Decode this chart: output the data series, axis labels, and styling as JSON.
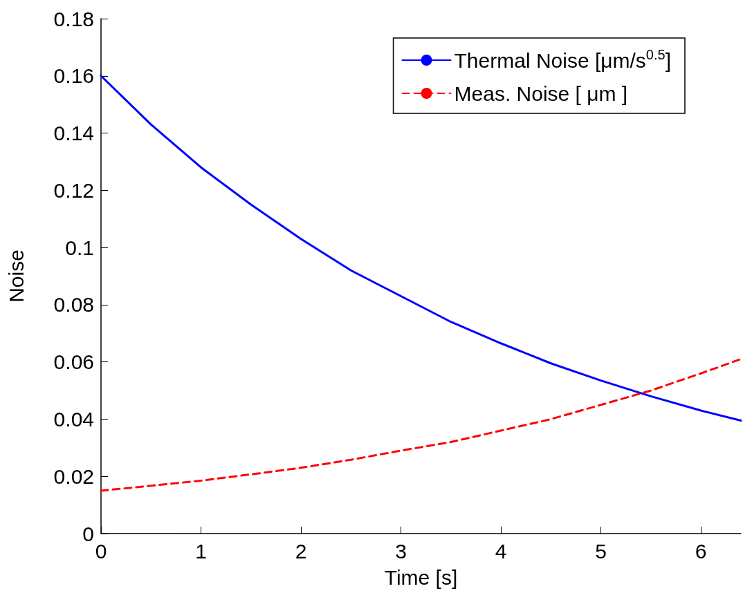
{
  "chart_data": {
    "type": "line",
    "xlabel": "Time [s]",
    "ylabel": "Noise",
    "xlim": [
      0,
      6.4
    ],
    "xticks": [
      0,
      1,
      2,
      3,
      4,
      5,
      6
    ],
    "ylim": [
      0,
      0.18
    ],
    "yticks": [
      0,
      0.02,
      0.04,
      0.06,
      0.08,
      0.1,
      0.12,
      0.14,
      0.16,
      0.18
    ],
    "grid": false,
    "legend": "top right",
    "marker": "none",
    "series": [
      {
        "name": "Thermal Noise [μm/s$^{0.5}$]",
        "color": "#0000ff",
        "line_style": "solid",
        "x": [
          0,
          0.5,
          1,
          1.5,
          2,
          2.5,
          3,
          3.5,
          4,
          4.5,
          5,
          5.5,
          6,
          6.4
        ],
        "values": [
          0.16,
          0.143,
          0.128,
          0.115,
          0.103,
          0.092,
          0.083,
          0.074,
          0.0665,
          0.0595,
          0.0535,
          0.048,
          0.043,
          0.0395
        ]
      },
      {
        "name": "Meas. Noise [ μm ]",
        "color": "#ff0000",
        "line_style": "dashed",
        "x": [
          0,
          0.5,
          1,
          1.5,
          2,
          2.5,
          3,
          3.5,
          4,
          4.5,
          5,
          5.5,
          6,
          6.4
        ],
        "values": [
          0.015,
          0.0167,
          0.0185,
          0.0207,
          0.023,
          0.0258,
          0.029,
          0.032,
          0.036,
          0.04,
          0.045,
          0.05,
          0.056,
          0.061
        ]
      }
    ]
  }
}
